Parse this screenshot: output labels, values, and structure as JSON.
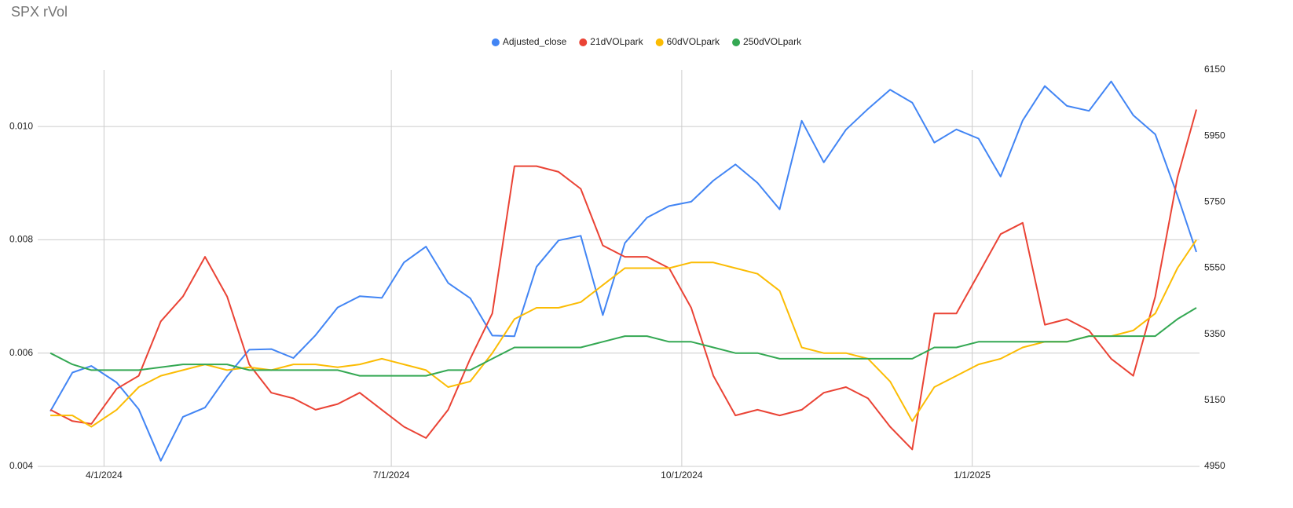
{
  "chart_data": {
    "type": "line",
    "title": "SPX rVol",
    "legend": "top",
    "grid": true,
    "x": [
      "3/15/2024",
      "3/22/2024",
      "3/28/2024",
      "4/5/2024",
      "4/12/2024",
      "4/19/2024",
      "4/26/2024",
      "5/3/2024",
      "5/10/2024",
      "5/17/2024",
      "5/24/2024",
      "5/31/2024",
      "6/7/2024",
      "6/14/2024",
      "6/21/2024",
      "6/28/2024",
      "7/5/2024",
      "7/12/2024",
      "7/19/2024",
      "7/26/2024",
      "8/2/2024",
      "8/9/2024",
      "8/16/2024",
      "8/23/2024",
      "8/30/2024",
      "9/6/2024",
      "9/13/2024",
      "9/20/2024",
      "9/27/2024",
      "10/4/2024",
      "10/11/2024",
      "10/18/2024",
      "10/25/2024",
      "11/1/2024",
      "11/8/2024",
      "11/15/2024",
      "11/22/2024",
      "11/29/2024",
      "12/6/2024",
      "12/13/2024",
      "12/20/2024",
      "12/27/2024",
      "1/3/2025",
      "1/10/2025",
      "1/17/2025",
      "1/24/2025",
      "1/31/2025",
      "2/7/2025",
      "2/14/2025",
      "2/21/2025",
      "2/28/2025",
      "3/7/2025",
      "3/13/2025"
    ],
    "xlim": [
      "3/11/2024",
      "3/14/2025"
    ],
    "xticks": [
      "4/1/2024",
      "7/1/2024",
      "10/1/2024",
      "1/1/2025"
    ],
    "ylim": [
      0.004,
      0.011
    ],
    "yticks": [
      0.004,
      0.006,
      0.008,
      {
        "value": 0.01,
        "label": "0.010"
      }
    ],
    "y2lim": [
      4950,
      6150
    ],
    "y2ticks": [
      4950,
      5150,
      5350,
      5550,
      5750,
      5950,
      6150
    ],
    "series": [
      {
        "name": "Adjusted_close",
        "color": "#4285f4",
        "axis": "y2",
        "values": [
          5117,
          5234,
          5254,
          5204,
          5123,
          4967,
          5100,
          5128,
          5223,
          5303,
          5305,
          5278,
          5347,
          5431,
          5465,
          5460,
          5567,
          5615,
          5505,
          5459,
          5346,
          5344,
          5554,
          5634,
          5648,
          5408,
          5626,
          5703,
          5738,
          5751,
          5815,
          5864,
          5808,
          5728,
          5996,
          5870,
          5969,
          6032,
          6090,
          6051,
          5930,
          5970,
          5942,
          5827,
          5997,
          6101,
          6041,
          6026,
          6115,
          6013,
          5955,
          5770,
          5599
        ]
      },
      {
        "name": "21dVOLpark",
        "color": "#ea4335",
        "values": [
          0.005,
          0.0048,
          0.00475,
          0.00537,
          0.0056,
          0.00656,
          0.007,
          0.0077,
          0.007,
          0.0058,
          0.0053,
          0.0052,
          0.005,
          0.0051,
          0.0053,
          0.005,
          0.0047,
          0.0045,
          0.005,
          0.0059,
          0.0067,
          0.0093,
          0.0093,
          0.0092,
          0.0089,
          0.0079,
          0.0077,
          0.0077,
          0.0075,
          0.0068,
          0.0056,
          0.0049,
          0.005,
          0.0049,
          0.005,
          0.0053,
          0.0054,
          0.0052,
          0.0047,
          0.0043,
          0.0067,
          0.0067,
          0.0074,
          0.0081,
          0.0083,
          0.0065,
          0.0066,
          0.0064,
          0.0059,
          0.0056,
          0.007,
          0.0091,
          0.0103
        ]
      },
      {
        "name": "60dVOLpark",
        "color": "#fbbc04",
        "values": [
          0.0049,
          0.0049,
          0.0047,
          0.005,
          0.0054,
          0.0056,
          0.0057,
          0.0058,
          0.0057,
          0.00575,
          0.0057,
          0.0058,
          0.0058,
          0.00575,
          0.0058,
          0.0059,
          0.0058,
          0.0057,
          0.0054,
          0.0055,
          0.006,
          0.0066,
          0.0068,
          0.0068,
          0.0069,
          0.0072,
          0.0075,
          0.0075,
          0.0075,
          0.0076,
          0.0076,
          0.0075,
          0.0074,
          0.0071,
          0.0061,
          0.006,
          0.006,
          0.0059,
          0.0055,
          0.0048,
          0.0054,
          0.0056,
          0.0058,
          0.0059,
          0.0061,
          0.0062,
          0.0062,
          0.0063,
          0.0063,
          0.0064,
          0.0067,
          0.0075,
          0.008
        ]
      },
      {
        "name": "250dVOLpark",
        "color": "#34a853",
        "values": [
          0.006,
          0.0058,
          0.0057,
          0.0057,
          0.0057,
          0.00575,
          0.0058,
          0.0058,
          0.0058,
          0.0057,
          0.0057,
          0.0057,
          0.0057,
          0.0057,
          0.0056,
          0.0056,
          0.0056,
          0.0056,
          0.0057,
          0.0057,
          0.0059,
          0.0061,
          0.0061,
          0.0061,
          0.0061,
          0.0062,
          0.0063,
          0.0063,
          0.0062,
          0.0062,
          0.0061,
          0.006,
          0.006,
          0.0059,
          0.0059,
          0.0059,
          0.0059,
          0.0059,
          0.0059,
          0.0059,
          0.0061,
          0.0061,
          0.0062,
          0.0062,
          0.0062,
          0.0062,
          0.0062,
          0.0063,
          0.0063,
          0.0063,
          0.0063,
          0.0066,
          0.0068
        ]
      }
    ]
  }
}
